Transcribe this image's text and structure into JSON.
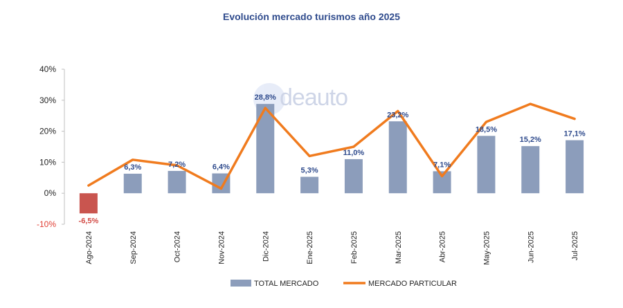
{
  "title": "Evolución mercado turismos año 2025",
  "watermark_text": "deauto",
  "colors": {
    "bar": "#8c9dbb",
    "bar_negative": "#c9554f",
    "line": "#f07b1e",
    "title": "#2e4a8c",
    "data_label": "#2e4a8c",
    "negative_text": "#e03c31"
  },
  "chart_data": {
    "type": "bar",
    "title": "Evolución mercado turismos año 2025",
    "categories": [
      "Ago-2024",
      "Sep-2024",
      "Oct-2024",
      "Nov-2024",
      "Dic-2024",
      "Ene-2025",
      "Feb-2025",
      "Mar-2025",
      "Abr-2025",
      "May-2025",
      "Jun-2025",
      "Jul-2025"
    ],
    "y_ticks": [
      -10,
      0,
      10,
      20,
      30,
      40
    ],
    "y_tick_labels": [
      "-10%",
      "0%",
      "10%",
      "20%",
      "30%",
      "40%"
    ],
    "ylim": [
      -10,
      40
    ],
    "grid": false,
    "legend_position": "bottom",
    "series": [
      {
        "name": "TOTAL MERCADO",
        "type": "bar",
        "values": [
          -6.5,
          6.3,
          7.2,
          6.4,
          28.8,
          5.3,
          11.0,
          23.2,
          7.1,
          18.5,
          15.2,
          17.1
        ],
        "labels": [
          "-6,5%",
          "6,3%",
          "7,2%",
          "6,4%",
          "28,8%",
          "5,3%",
          "11,0%",
          "23,2%",
          "7,1%",
          "18,5%",
          "15,2%",
          "17,1%"
        ]
      },
      {
        "name": "MERCADO PARTICULAR",
        "type": "line",
        "values": [
          2.5,
          10.8,
          9.0,
          1.5,
          27.5,
          12.0,
          15.0,
          26.5,
          5.5,
          23.0,
          28.8,
          24.0
        ]
      }
    ]
  }
}
